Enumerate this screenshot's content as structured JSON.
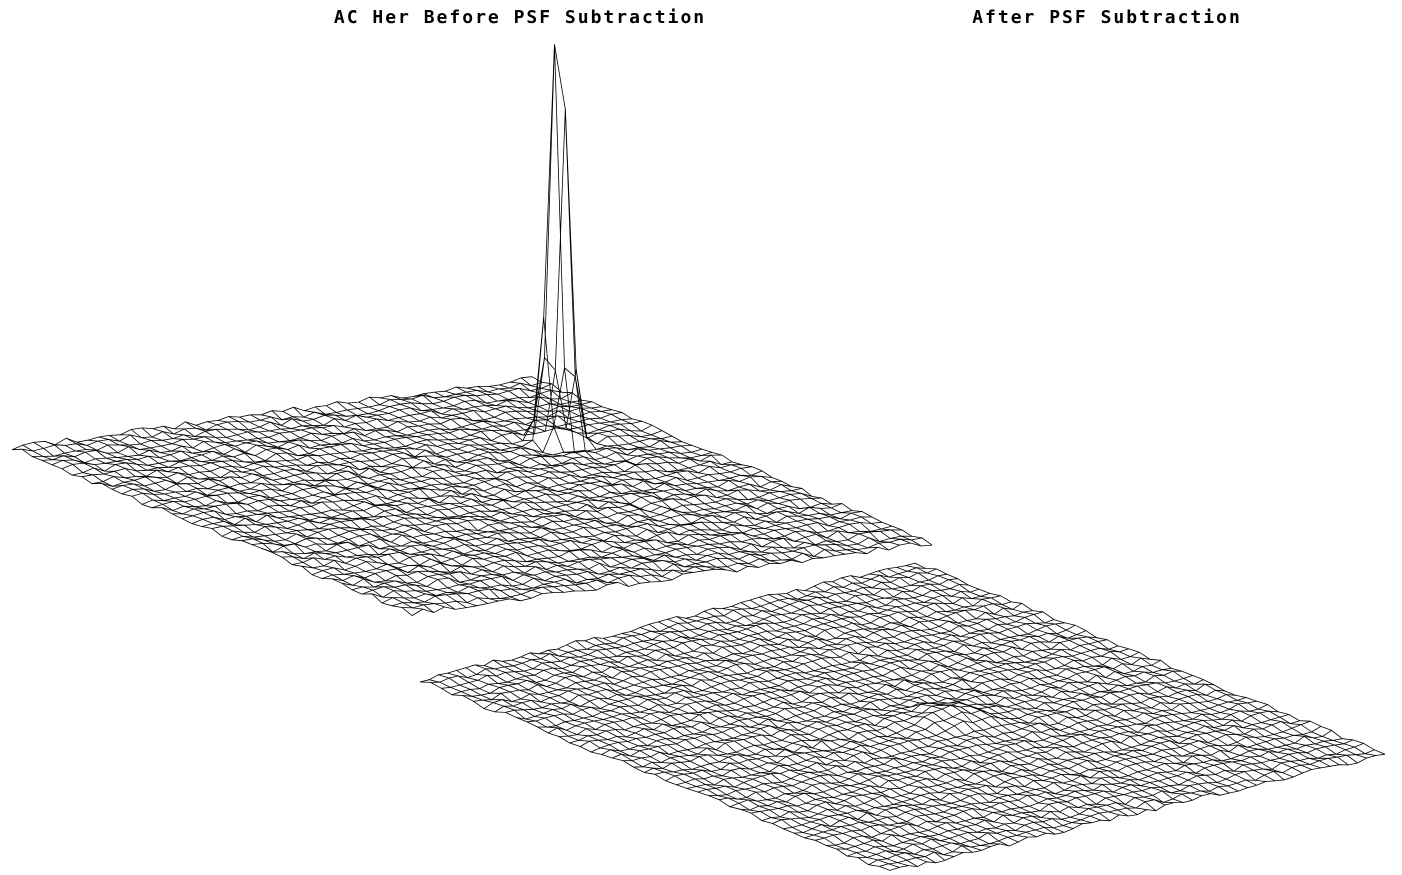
{
  "chart_data": {
    "type": "surface",
    "panels": [
      {
        "title": "AC Her Before PSF Subtraction",
        "description_of_values": "intensity surface with a single sharp central peak",
        "peak_relative_height": 1.0,
        "background_level": 0.0
      },
      {
        "title": "After PSF Subtraction",
        "description_of_values": "residual intensity surface, nearly flat",
        "peak_relative_height": 0.02,
        "background_level": 0.0
      }
    ],
    "grid": "wireframe mesh",
    "axes_visible": false,
    "colors": {
      "line": "#000000",
      "background": "#ffffff"
    }
  }
}
